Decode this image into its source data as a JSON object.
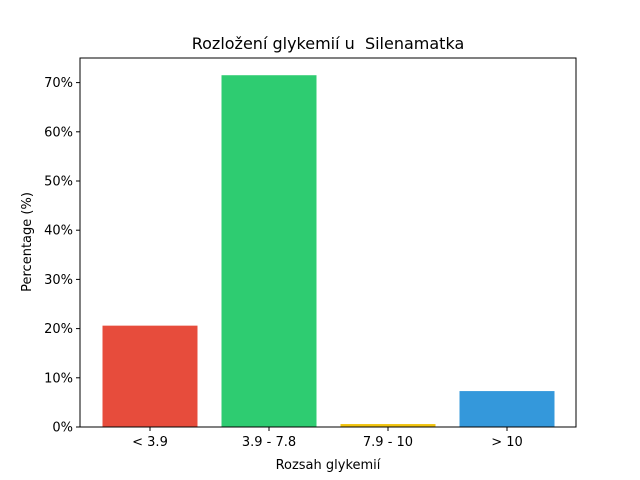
{
  "chart_data": {
    "type": "bar",
    "title": "Rozložení glykemií u  Silenamatka",
    "xlabel": "Rozsah glykemií",
    "ylabel": "Percentage (%)",
    "categories": [
      "< 3.9",
      "3.9 - 7.8",
      "7.9 - 10",
      "> 10"
    ],
    "values": [
      20.6,
      71.5,
      0.6,
      7.3
    ],
    "colors": [
      "#e74c3c",
      "#2ecc71",
      "#f1c40f",
      "#3498db"
    ],
    "ylim": [
      0,
      75
    ],
    "yticks": [
      0,
      10,
      20,
      30,
      40,
      50,
      60,
      70
    ],
    "ytick_labels": [
      "0%",
      "10%",
      "20%",
      "30%",
      "40%",
      "50%",
      "60%",
      "70%"
    ],
    "grid": false,
    "legend": false
  }
}
